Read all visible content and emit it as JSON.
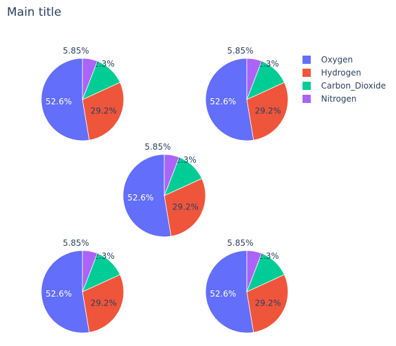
{
  "title": "Main title",
  "colors": {
    "Oxygen": "#636efa",
    "Hydrogen": "#ef553b",
    "Carbon_Dioxide": "#00cc96",
    "Nitrogen": "#ab63fa"
  },
  "legend": {
    "position": "top-right",
    "items": [
      "Oxygen",
      "Hydrogen",
      "Carbon_Dioxide",
      "Nitrogen"
    ]
  },
  "chart_data": [
    {
      "type": "pie",
      "labels": [
        "Oxygen",
        "Hydrogen",
        "Carbon_Dioxide",
        "Nitrogen"
      ],
      "values": [
        52.6,
        29.2,
        12.3,
        5.85
      ],
      "text": [
        "52.6%",
        "29.2%",
        "12.3%",
        "5.85%"
      ]
    },
    {
      "type": "pie",
      "labels": [
        "Oxygen",
        "Hydrogen",
        "Carbon_Dioxide",
        "Nitrogen"
      ],
      "values": [
        52.6,
        29.2,
        12.3,
        5.85
      ],
      "text": [
        "52.6%",
        "29.2%",
        "12.3%",
        "5.85%"
      ]
    },
    {
      "type": "pie",
      "labels": [
        "Oxygen",
        "Hydrogen",
        "Carbon_Dioxide",
        "Nitrogen"
      ],
      "values": [
        52.6,
        29.2,
        12.3,
        5.85
      ],
      "text": [
        "52.6%",
        "29.2%",
        "12.3%",
        "5.85%"
      ]
    },
    {
      "type": "pie",
      "labels": [
        "Oxygen",
        "Hydrogen",
        "Carbon_Dioxide",
        "Nitrogen"
      ],
      "values": [
        52.6,
        29.2,
        12.3,
        5.85
      ],
      "text": [
        "52.6%",
        "29.2%",
        "12.3%",
        "5.85%"
      ]
    },
    {
      "type": "pie",
      "labels": [
        "Oxygen",
        "Hydrogen",
        "Carbon_Dioxide",
        "Nitrogen"
      ],
      "values": [
        52.6,
        29.2,
        12.3,
        5.85
      ],
      "text": [
        "52.6%",
        "29.2%",
        "12.3%",
        "5.85%"
      ]
    }
  ]
}
